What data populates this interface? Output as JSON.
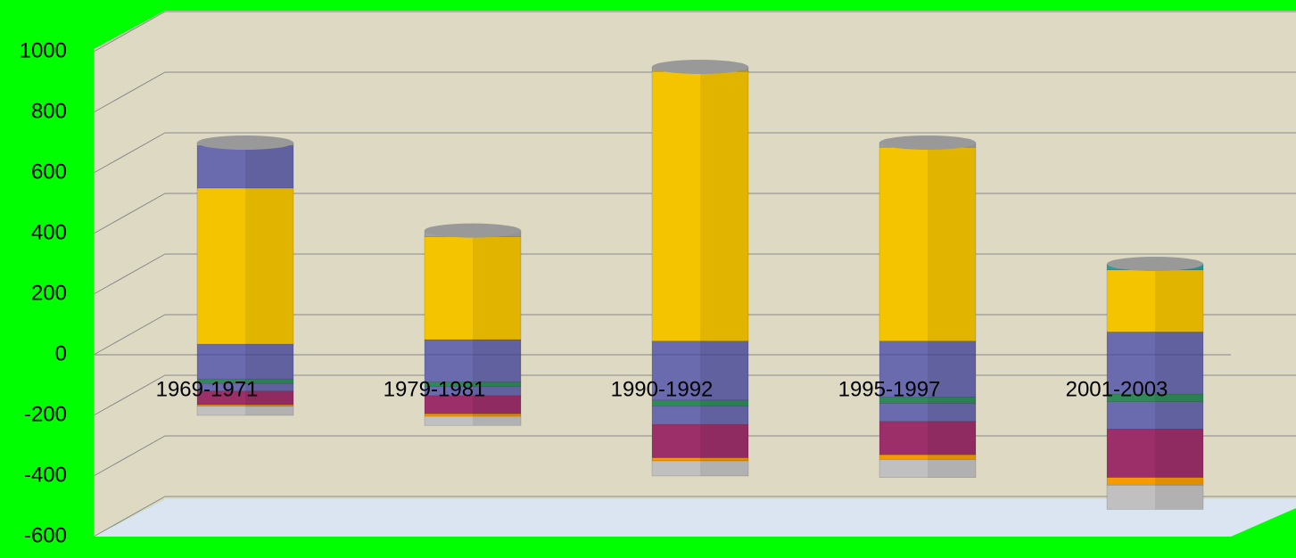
{
  "chart_data": {
    "type": "bar",
    "stacked": true,
    "categories": [
      "1969-1971",
      "1979-1981",
      "1990-1992",
      "1995-1997",
      "2001-2003"
    ],
    "series": [
      {
        "color": "#6a6aae",
        "values": [
          35,
          50,
          45,
          45,
          75
        ]
      },
      {
        "color": "#f5c400",
        "values": [
          515,
          340,
          890,
          640,
          205
        ]
      },
      {
        "color": "#6a6aae",
        "values": [
          140,
          0,
          0,
          0,
          0
        ]
      },
      {
        "color": "#a0a0a0",
        "values": [
          10,
          20,
          15,
          15,
          0
        ]
      },
      {
        "color": "#2a9d9d",
        "values": [
          0,
          0,
          0,
          0,
          20
        ]
      },
      {
        "color": "#6a6aae",
        "values": [
          -80,
          -90,
          -150,
          -140,
          -130
        ]
      },
      {
        "color": "#2e8b57",
        "values": [
          -15,
          -15,
          -20,
          -20,
          -25
        ]
      },
      {
        "color": "#6a6aae",
        "values": [
          -25,
          -30,
          -60,
          -60,
          -90
        ]
      },
      {
        "color": "#9c2f6a",
        "values": [
          -45,
          -60,
          -110,
          -110,
          -160
        ]
      },
      {
        "color": "#f59a00",
        "values": [
          -5,
          -8,
          -10,
          -15,
          -25
        ]
      },
      {
        "color": "#c0c0c0",
        "values": [
          -30,
          -30,
          -50,
          -60,
          -80
        ]
      }
    ],
    "ylim": [
      -600,
      1000
    ],
    "yticks": [
      -600,
      -400,
      -200,
      0,
      200,
      400,
      600,
      800,
      1000
    ],
    "grid": true
  }
}
